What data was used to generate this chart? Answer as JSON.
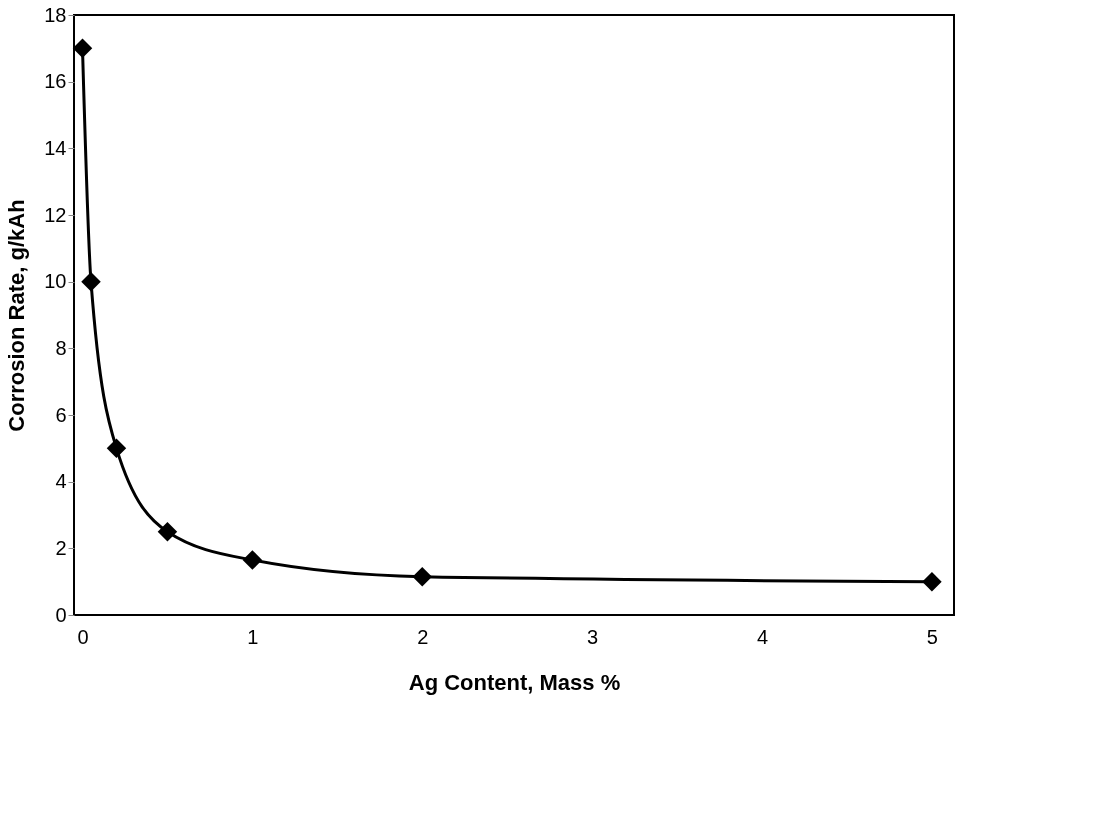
{
  "chart_data": {
    "type": "line",
    "xlabel": "Ag Content, Mass %",
    "ylabel": "Corrosion Rate, g/kAh",
    "x": [
      0,
      0.05,
      0.2,
      0.5,
      1,
      2,
      5
    ],
    "series": [
      {
        "color": "#000000",
        "values": [
          17,
          10,
          5,
          2.5,
          1.65,
          1.15,
          1.0
        ]
      }
    ],
    "xlim": [
      -0.05,
      5.13
    ],
    "xticks": [
      0,
      1,
      2,
      3,
      4,
      5
    ],
    "ylim": [
      0,
      18
    ],
    "yticks": [
      0,
      2,
      4,
      6,
      8,
      10,
      12,
      14,
      16,
      18
    ],
    "grid": false,
    "marker": "diamond",
    "line_style": "solid"
  }
}
